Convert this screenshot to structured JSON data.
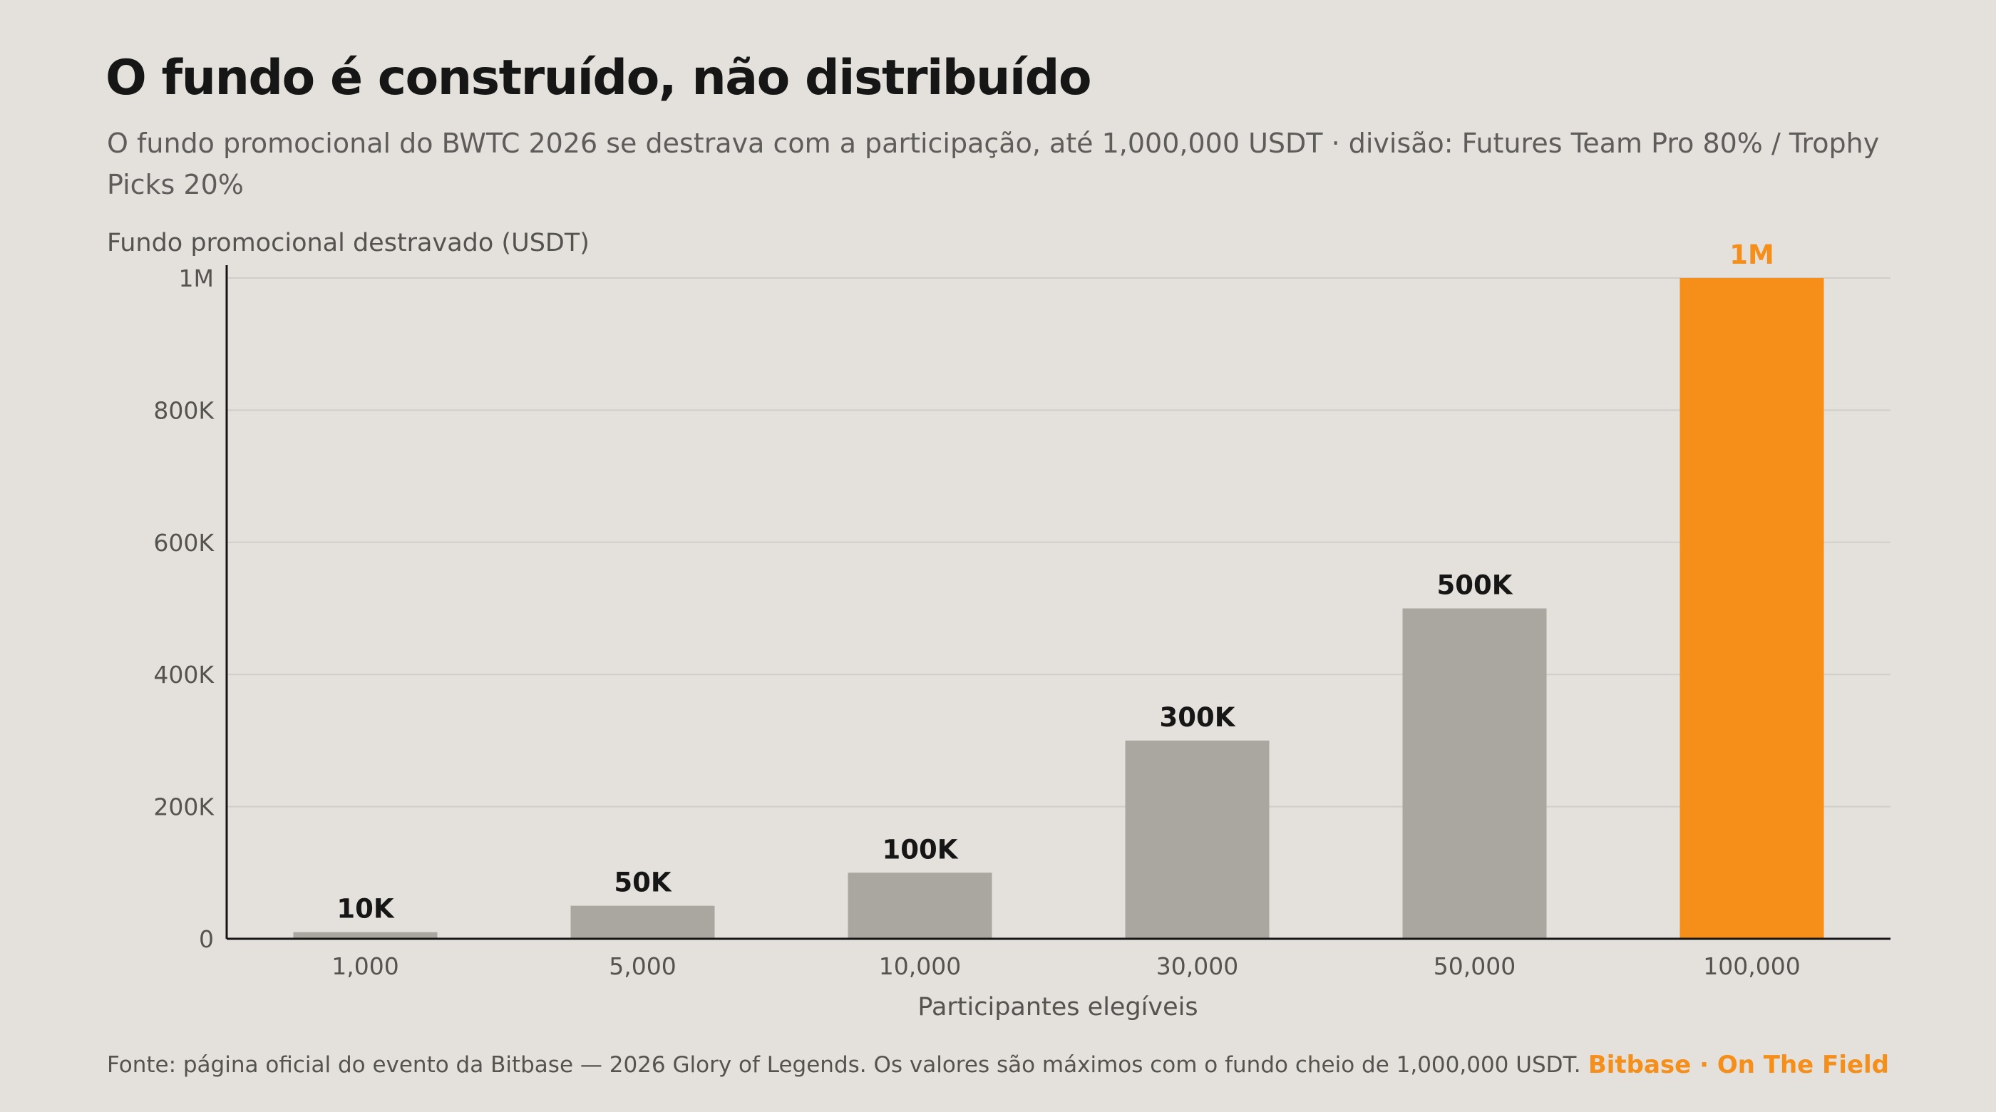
{
  "header": {
    "title": "O fundo é construído, não distribuído",
    "subtitle": "O fundo promocional do BWTC 2026 se destrava com a participação, até 1,000,000 USDT · divisão: Futures Team Pro 80% / Trophy Picks 20%"
  },
  "chart_data": {
    "type": "bar",
    "categories": [
      "1,000",
      "5,000",
      "10,000",
      "30,000",
      "50,000",
      "100,000"
    ],
    "values": [
      10000,
      50000,
      100000,
      300000,
      500000,
      1000000
    ],
    "data_labels": [
      "10K",
      "50K",
      "100K",
      "300K",
      "500K",
      "1M"
    ],
    "title": "O fundo é construído, não distribuído",
    "xlabel": "Participantes elegíveis",
    "ylabel": "Fundo promocional destravado (USDT)",
    "ylim": [
      0,
      1000000
    ],
    "yticks": [
      0,
      200000,
      400000,
      600000,
      800000,
      1000000
    ],
    "ytick_labels": [
      "0",
      "200K",
      "400K",
      "600K",
      "800K",
      "1M"
    ],
    "grid": true,
    "legend": "none",
    "highlight_index": 5,
    "colors": {
      "bar": "#aaa6a0",
      "highlight": "#f58f1a",
      "label_dark": "#161616",
      "grid": "#d2cdc8",
      "axis": "#161616"
    }
  },
  "footer": {
    "source": "Fonte: página oficial do evento da Bitbase — 2026 Glory of Legends. Os valores são máximos com o fundo cheio de 1,000,000 USDT.",
    "brand": "Bitbase · On The Field"
  }
}
